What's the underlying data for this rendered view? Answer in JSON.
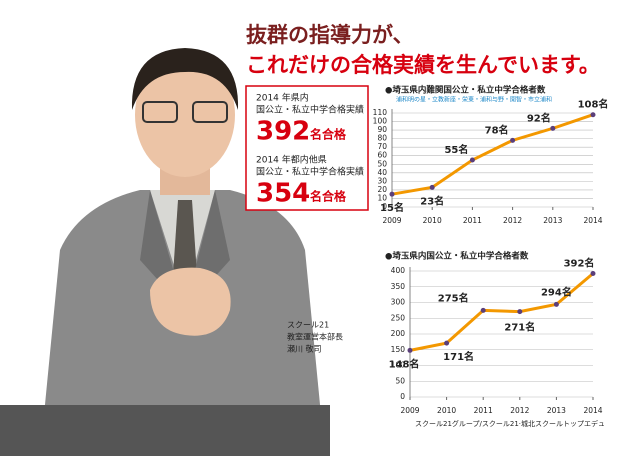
{
  "header": {
    "line1": "抜群の指導力が、",
    "line2": "これだけの合格実績を生んでいます。"
  },
  "stats": [
    {
      "label1": "2014 年県内",
      "label2": "国公立・私立中学合格実績",
      "number": "392",
      "unit": "名合格"
    },
    {
      "label1": "2014 年都内他県",
      "label2": "国公立・私立中学合格実績",
      "number": "354",
      "unit": "名合格"
    }
  ],
  "caption": {
    "line1": "スクール21",
    "line2": "教室運営本部長",
    "line3": "瀬川 敬司"
  },
  "footer": "スクール21グループ/スクール21·城北スクールトップエデュ",
  "chart_data": [
    {
      "type": "line",
      "title": "●埼玉県内難関国公立・私立中学合格者数",
      "subtitle": "浦和明の星・立教新座・栄東・浦和与野・開智・市立浦和",
      "x": [
        2009,
        2010,
        2011,
        2012,
        2013,
        2014
      ],
      "xlim": [
        2009,
        2014
      ],
      "xticks": [
        2009,
        2010,
        2011,
        2012,
        2013,
        2014
      ],
      "series": [
        {
          "color": "#f39800",
          "marker_color": "#5b3f7a",
          "values": [
            15,
            23,
            55,
            78,
            92,
            108
          ],
          "value_labels": [
            "15名",
            "23名",
            "55名",
            "78名",
            "92名",
            "108名"
          ]
        }
      ],
      "ylim": [
        0,
        110
      ],
      "yticks": [
        0,
        10,
        20,
        30,
        40,
        50,
        60,
        70,
        80,
        90,
        100,
        110
      ],
      "grid": true
    },
    {
      "type": "line",
      "title": "●埼玉県内国公立・私立中学合格者数",
      "x": [
        2009,
        2010,
        2011,
        2012,
        2013,
        2014
      ],
      "xlim": [
        2009,
        2014
      ],
      "xticks": [
        2009,
        2010,
        2011,
        2012,
        2013,
        2014
      ],
      "series": [
        {
          "color": "#f39800",
          "marker_color": "#5b3f7a",
          "values": [
            148,
            171,
            275,
            271,
            294,
            392
          ],
          "value_labels": [
            "148名",
            "171名",
            "275名",
            "271名",
            "294名",
            "392名"
          ]
        }
      ],
      "ylim": [
        0,
        400
      ],
      "yticks": [
        0,
        50,
        100,
        150,
        200,
        250,
        300,
        350,
        400
      ],
      "grid": true
    }
  ]
}
